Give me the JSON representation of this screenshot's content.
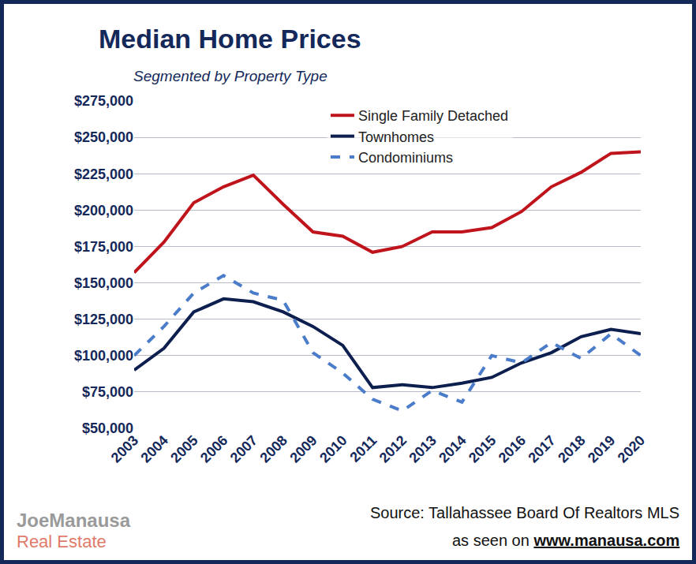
{
  "chart_data": {
    "type": "line",
    "title": "Median Home Prices",
    "subtitle": "Segmented by Property Type",
    "categories": [
      "2003",
      "2004",
      "2005",
      "2006",
      "2007",
      "2008",
      "2009",
      "2010",
      "2011",
      "2012",
      "2013",
      "2014",
      "2015",
      "2016",
      "2017",
      "2018",
      "2019",
      "2020"
    ],
    "series": [
      {
        "name": "Single Family Detached",
        "color": "#c0141c",
        "line_style": "solid",
        "values": [
          157000,
          178000,
          205000,
          216000,
          224000,
          204000,
          185000,
          182000,
          171000,
          175000,
          185000,
          185000,
          188000,
          199000,
          216000,
          226000,
          239000,
          240000
        ]
      },
      {
        "name": "Townhomes",
        "color": "#0d1f4f",
        "line_style": "solid",
        "values": [
          90000,
          105000,
          130000,
          139000,
          137000,
          130000,
          120000,
          107000,
          78000,
          80000,
          78000,
          81000,
          85000,
          95000,
          102000,
          113000,
          118000,
          115000
        ]
      },
      {
        "name": "Condominiums",
        "color": "#4a7cc9",
        "line_style": "dash",
        "values": [
          100000,
          120000,
          143000,
          155000,
          143000,
          138000,
          102000,
          88000,
          70000,
          62000,
          76000,
          68000,
          100000,
          95000,
          109000,
          98000,
          115000,
          100000
        ]
      }
    ],
    "ylim": [
      50000,
      275000
    ],
    "yticks": [
      {
        "value": 50000,
        "label": "$50,000"
      },
      {
        "value": 75000,
        "label": "$75,000"
      },
      {
        "value": 100000,
        "label": "$100,000"
      },
      {
        "value": 125000,
        "label": "$125,000"
      },
      {
        "value": 150000,
        "label": "$150,000"
      },
      {
        "value": 175000,
        "label": "$175,000"
      },
      {
        "value": 200000,
        "label": "$200,000"
      },
      {
        "value": 225000,
        "label": "$225,000"
      },
      {
        "value": 250000,
        "label": "$250,000"
      },
      {
        "value": 275000,
        "label": "$275,000"
      }
    ],
    "grid": true,
    "legend": "top right",
    "annotations": [
      "Source: Tallahassee Board Of Realtors MLS",
      "as seen on",
      "www.manausa.com",
      "JoeManausa",
      "Real Estate"
    ]
  }
}
